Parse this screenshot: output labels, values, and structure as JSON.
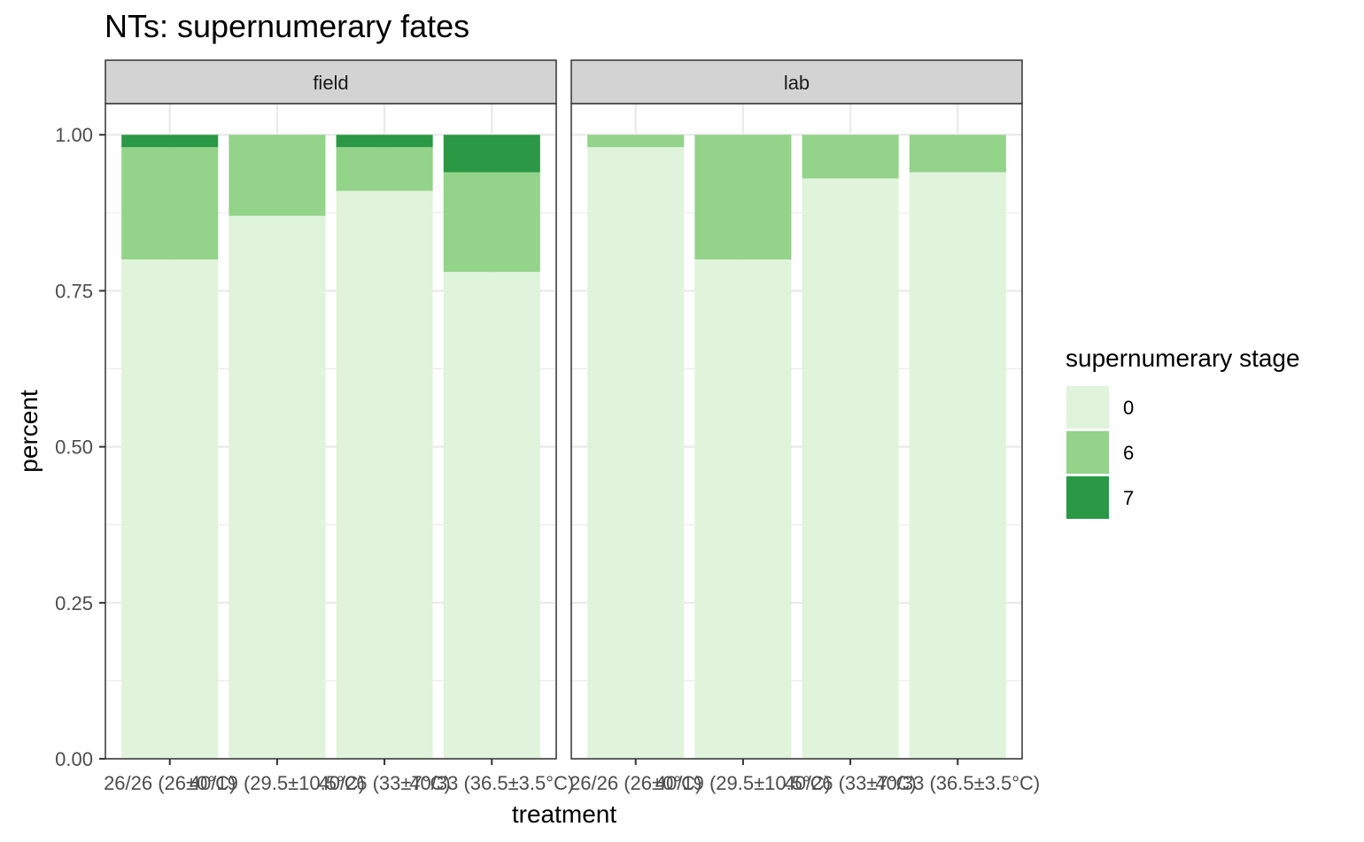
{
  "chart_data": {
    "type": "bar",
    "stacked": true,
    "title": "NTs: supernumerary fates",
    "xlabel": "treatment",
    "ylabel": "percent",
    "ylim": [
      0,
      1.05
    ],
    "yticks": [
      "0.00",
      "0.25",
      "0.50",
      "0.75",
      "1.00"
    ],
    "grid": true,
    "legend": {
      "title": "supernumerary stage",
      "placement": "right",
      "entries": [
        {
          "label": "0",
          "color": "#e0f3db"
        },
        {
          "label": "6",
          "color": "#93d38a"
        },
        {
          "label": "7",
          "color": "#2b9846"
        }
      ]
    },
    "categories": [
      "26/26 (26±0°C)",
      "40/19 (29.5±10.5°C)",
      "40/26 (33±7°C)",
      "40/33 (36.5±3.5°C)"
    ],
    "facets": [
      {
        "name": "field",
        "series": [
          {
            "name": "0",
            "values": [
              0.8,
              0.87,
              0.91,
              0.78
            ]
          },
          {
            "name": "6",
            "values": [
              0.18,
              0.13,
              0.07,
              0.16
            ]
          },
          {
            "name": "7",
            "values": [
              0.02,
              0.0,
              0.02,
              0.06
            ]
          }
        ]
      },
      {
        "name": "lab",
        "series": [
          {
            "name": "0",
            "values": [
              0.98,
              0.8,
              0.93,
              0.94
            ]
          },
          {
            "name": "6",
            "values": [
              0.02,
              0.2,
              0.07,
              0.06
            ]
          },
          {
            "name": "7",
            "values": [
              0.0,
              0.0,
              0.0,
              0.0
            ]
          }
        ]
      }
    ]
  }
}
